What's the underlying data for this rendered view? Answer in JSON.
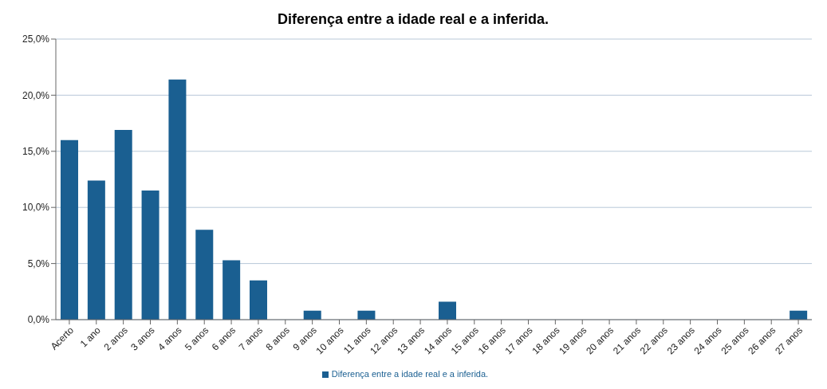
{
  "chart_data": {
    "type": "bar",
    "title": "Diferença entre a idade real e a inferida.",
    "categories": [
      "Acerto",
      "1 ano",
      "2 anos",
      "3 anos",
      "4 anos",
      "5 anos",
      "6 anos",
      "7 anos",
      "8 anos",
      "9 anos",
      "10 anos",
      "11 anos",
      "12 anos",
      "13 anos",
      "14 anos",
      "15 anos",
      "16 anos",
      "17 anos",
      "18 anos",
      "19 anos",
      "20 anos",
      "21 anos",
      "22 anos",
      "23 anos",
      "24 anos",
      "25 anos",
      "26 anos",
      "27 anos"
    ],
    "series": [
      {
        "name": "Diferença entre a idade real e a inferida.",
        "color": "#1a5f91",
        "values": [
          16.0,
          12.4,
          16.9,
          11.5,
          21.4,
          8.0,
          5.3,
          3.5,
          0,
          0.8,
          0,
          0.8,
          0,
          0,
          1.6,
          0,
          0,
          0,
          0,
          0,
          0,
          0,
          0,
          0,
          0,
          0,
          0,
          0.8
        ]
      }
    ],
    "ylim": [
      0,
      25
    ],
    "yticks": [
      {
        "value": 0,
        "label": "0,0%"
      },
      {
        "value": 5,
        "label": "5,0%"
      },
      {
        "value": 10,
        "label": "10,0%"
      },
      {
        "value": 15,
        "label": "15,0%"
      },
      {
        "value": 20,
        "label": "20,0%"
      },
      {
        "value": 25,
        "label": "25,0%"
      }
    ],
    "grid": "y",
    "legend": "bottom"
  }
}
